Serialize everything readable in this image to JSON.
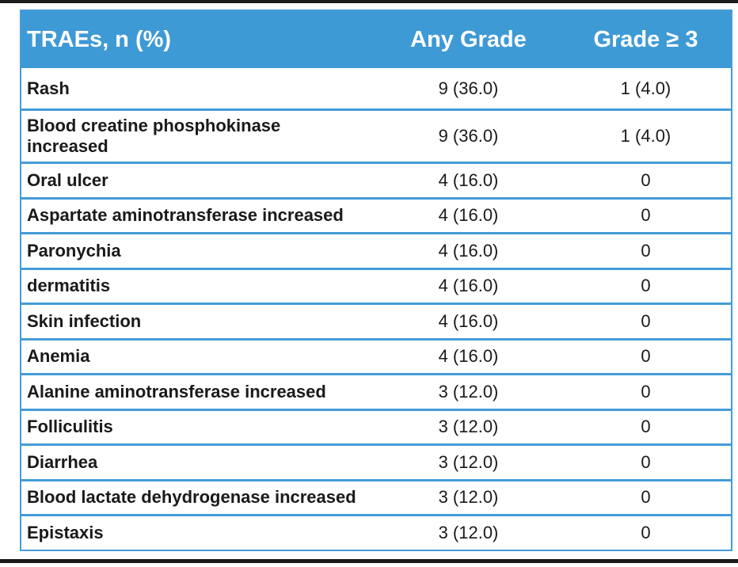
{
  "colors": {
    "header_bg": "#3E9AD5",
    "table_border": "#459CD8",
    "header_text": "#FFFFFF",
    "body_text": "#1A1A1A",
    "frame_line": "#1B1B1B"
  },
  "table": {
    "columns": [
      {
        "label": "TRAEs, n (%)"
      },
      {
        "label": "Any Grade"
      },
      {
        "label": "Grade ≥ 3"
      }
    ],
    "rows": [
      {
        "name": "Rash",
        "any_grade": "9 (36.0)",
        "grade_ge3": "1 (4.0)"
      },
      {
        "name": "Blood creatine phosphokinase\nincreased",
        "any_grade": "9 (36.0)",
        "grade_ge3": "1 (4.0)"
      },
      {
        "name": "Oral ulcer",
        "any_grade": "4 (16.0)",
        "grade_ge3": "0"
      },
      {
        "name": "Aspartate aminotransferase increased",
        "any_grade": "4 (16.0)",
        "grade_ge3": "0"
      },
      {
        "name": "Paronychia",
        "any_grade": "4 (16.0)",
        "grade_ge3": "0"
      },
      {
        "name": "dermatitis",
        "any_grade": "4 (16.0)",
        "grade_ge3": "0"
      },
      {
        "name": "Skin infection",
        "any_grade": "4 (16.0)",
        "grade_ge3": "0"
      },
      {
        "name": "Anemia",
        "any_grade": "4 (16.0)",
        "grade_ge3": "0"
      },
      {
        "name": "Alanine aminotransferase increased",
        "any_grade": "3 (12.0)",
        "grade_ge3": "0"
      },
      {
        "name": "Folliculitis",
        "any_grade": "3 (12.0)",
        "grade_ge3": "0"
      },
      {
        "name": "Diarrhea",
        "any_grade": "3 (12.0)",
        "grade_ge3": "0"
      },
      {
        "name": "Blood lactate dehydrogenase increased",
        "any_grade": "3 (12.0)",
        "grade_ge3": "0"
      },
      {
        "name": "Epistaxis",
        "any_grade": "3 (12.0)",
        "grade_ge3": "0"
      }
    ]
  }
}
